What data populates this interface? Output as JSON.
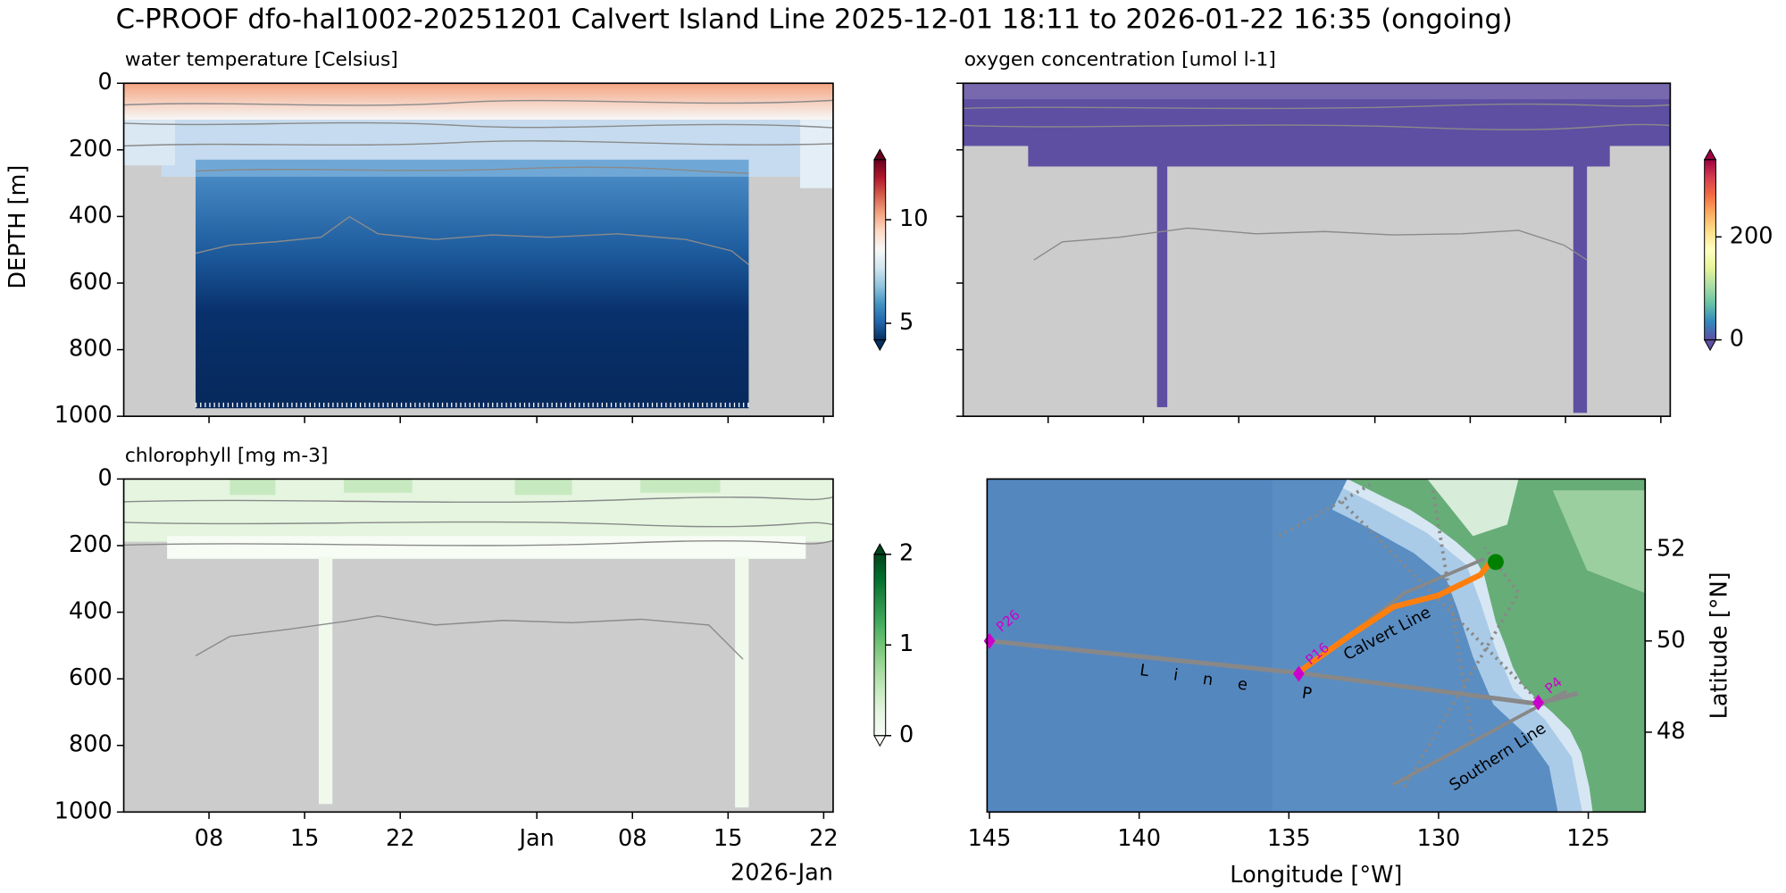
{
  "title": "C-PROOF dfo-hal1002-20251201   Calvert Island Line   2025-12-01 18:11 to 2026-01-22 16:35 (ongoing)",
  "chart_data": [
    {
      "type": "heatmap",
      "title": "water temperature [Celsius]",
      "ylabel": "DEPTH [m]",
      "ylim": [
        1000,
        0
      ],
      "yticks": [
        0,
        200,
        400,
        600,
        800,
        1000
      ],
      "sharex": 2,
      "clim": [
        4.2,
        12.9
      ],
      "cticks": [
        5,
        10
      ],
      "cmap": [
        "#053061",
        "#2166ac",
        "#4393c3",
        "#92c5de",
        "#d1e5f0",
        "#f7f7f7",
        "#fddbc7",
        "#f4a582",
        "#d6604d",
        "#b2182b",
        "#67001f"
      ]
    },
    {
      "type": "heatmap",
      "title": "oxygen concentration [umol l-1]",
      "sharey": 0,
      "sharex": 2,
      "clim": [
        0,
        350
      ],
      "cticks": [
        0,
        200
      ],
      "cmap": [
        "#5e4fa2",
        "#3288bd",
        "#66c2a5",
        "#abdda4",
        "#e6f598",
        "#ffffbf",
        "#fee08b",
        "#fdae61",
        "#f46d43",
        "#d53e4f",
        "#9e0142"
      ]
    },
    {
      "type": "heatmap",
      "title": "chlorophyll [mg m-3]",
      "ylim": [
        1000,
        0
      ],
      "yticks": [
        0,
        200,
        400,
        600,
        800,
        1000
      ],
      "xlim": [
        "2025-12-01T18:11",
        "2026-01-22T16:35"
      ],
      "xticks": [
        {
          "value": "2025-12-08",
          "label": "08"
        },
        {
          "value": "2025-12-15",
          "label": "15"
        },
        {
          "value": "2025-12-22",
          "label": "22"
        },
        {
          "value": "2026-01-01",
          "label": "Jan"
        },
        {
          "value": "2026-01-08",
          "label": "08"
        },
        {
          "value": "2026-01-15",
          "label": "15"
        },
        {
          "value": "2026-01-22",
          "label": "22"
        }
      ],
      "xoffset": "2026-Jan",
      "clim": [
        0,
        2
      ],
      "cticks": [
        0,
        1,
        2
      ],
      "cmap": [
        "#f7fcf5",
        "#e5f5e0",
        "#c7e9c0",
        "#a1d99b",
        "#74c476",
        "#41ab5d",
        "#238b45",
        "#006d2c",
        "#00441b"
      ]
    },
    {
      "type": "map",
      "xlabel": "Longitude [°W]",
      "ylabel": "Latitude [°N]",
      "xlim": [
        145.08,
        123.1
      ],
      "xticks": [
        145,
        140,
        135,
        130,
        125
      ],
      "ylim": [
        46.25,
        53.55
      ],
      "yticks": [
        48,
        50,
        52
      ],
      "stations": {
        "names": [
          "P26",
          "P16",
          "P4"
        ],
        "lon": [
          145,
          134.67,
          126.67
        ],
        "lat": [
          50,
          49.28,
          48.65
        ],
        "color": "#cc00cc"
      },
      "lines": {
        "names": [
          "Line P",
          "Calvert Line",
          "Southern Line"
        ]
      },
      "track": {
        "lon": [
          134.6,
          133.0,
          131.5,
          130.0,
          128.6,
          128.3
        ],
        "lat": [
          49.35,
          50.1,
          50.75,
          51.0,
          51.45,
          51.7
        ],
        "color": "#ff7f0e"
      },
      "position": {
        "lon": 128.09,
        "lat": 51.73,
        "color": "#008000"
      }
    }
  ]
}
